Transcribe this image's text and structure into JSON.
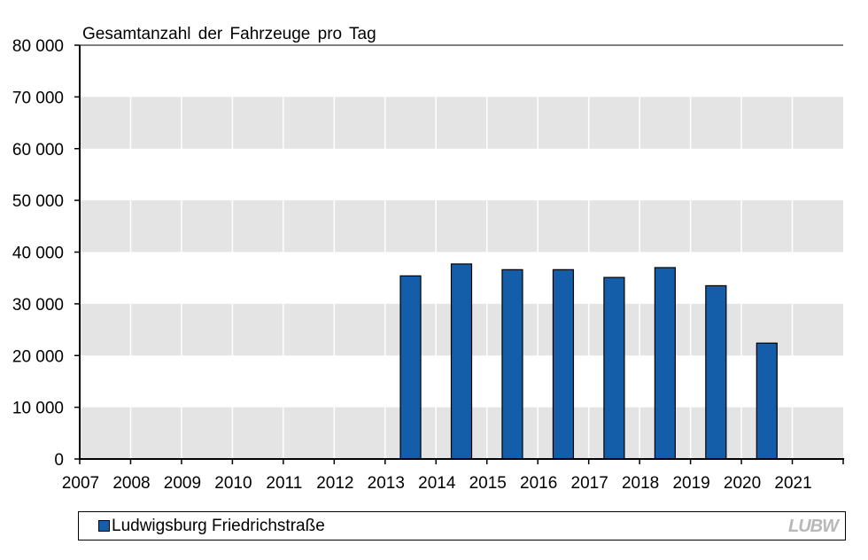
{
  "chart_data": {
    "type": "bar",
    "title": "Gesamtanzahl der Fahrzeuge pro Tag",
    "xlabel": "",
    "ylabel": "",
    "categories": [
      "2007",
      "2008",
      "2009",
      "2010",
      "2011",
      "2012",
      "2013",
      "2014",
      "2015",
      "2016",
      "2017",
      "2018",
      "2019",
      "2020",
      "2021"
    ],
    "series": [
      {
        "name": "Ludwigsburg Friedrichstraße",
        "color": "#145da8",
        "values": [
          null,
          null,
          null,
          null,
          null,
          null,
          35400,
          37700,
          36600,
          36600,
          35100,
          37000,
          33500,
          22400,
          null
        ]
      }
    ],
    "ylim": [
      0,
      80000
    ],
    "yticks": [
      0,
      10000,
      20000,
      30000,
      40000,
      50000,
      60000,
      70000,
      80000
    ],
    "ytick_labels": [
      "0",
      "10 000",
      "20 000",
      "30 000",
      "40 000",
      "50 000",
      "60 000",
      "70 000",
      "80 000"
    ],
    "grid": "alternating horizontal bands",
    "legend_position": "bottom"
  },
  "colors": {
    "bar": "#145da8",
    "band": "#e4e4e4",
    "background": "#ffffff",
    "logo": "#b8b8b8"
  },
  "legend": {
    "label": "Ludwigsburg Friedrichstraße"
  },
  "logo": {
    "text": "LUBW"
  }
}
